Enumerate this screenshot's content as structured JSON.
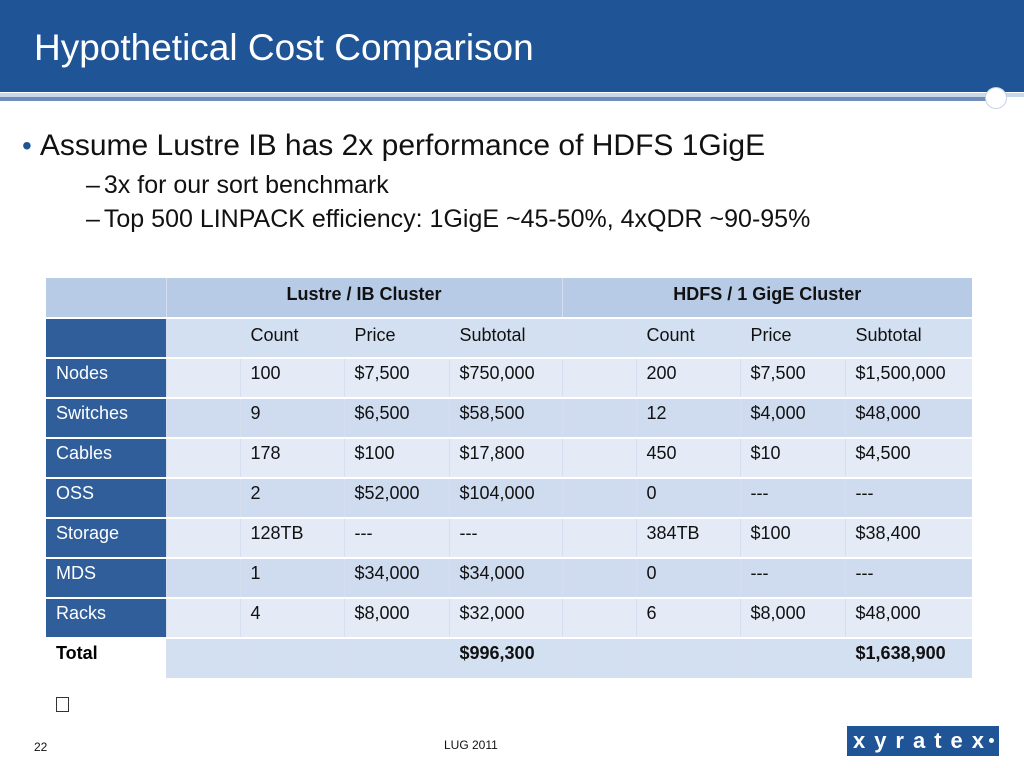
{
  "slide": {
    "title": "Hypothetical Cost Comparison",
    "bullet_main": "Assume Lustre IB has 2x performance of HDFS 1GigE",
    "sub_bullets": [
      "3x for our sort benchmark",
      "Top 500 LINPACK efficiency: 1GigE ~45-50%, 4xQDR ~90-95%"
    ],
    "bullet_marker": "•",
    "dash_marker": "–",
    "page_number": "22",
    "footer": "LUG 2011",
    "logo": "xyratex"
  },
  "table": {
    "groups": [
      "Lustre / IB Cluster",
      "HDFS / 1 GigE Cluster"
    ],
    "columns": [
      "Count",
      "Price",
      "Subtotal",
      "Count",
      "Price",
      "Subtotal"
    ],
    "rows": [
      {
        "label": "Nodes",
        "l_count": "100",
        "l_price": "$7,500",
        "l_sub": "$750,000",
        "h_count": "200",
        "h_price": "$7,500",
        "h_sub": "$1,500,000"
      },
      {
        "label": "Switches",
        "l_count": "9",
        "l_price": "$6,500",
        "l_sub": "$58,500",
        "h_count": "12",
        "h_price": "$4,000",
        "h_sub": "$48,000"
      },
      {
        "label": "Cables",
        "l_count": "178",
        "l_price": "$100",
        "l_sub": "$17,800",
        "h_count": "450",
        "h_price": "$10",
        "h_sub": "$4,500"
      },
      {
        "label": "OSS",
        "l_count": "2",
        "l_price": "$52,000",
        "l_sub": "$104,000",
        "h_count": "0",
        "h_price": "---",
        "h_sub": "---"
      },
      {
        "label": "Storage",
        "l_count": "128TB",
        "l_price": "---",
        "l_sub": "---",
        "h_count": "384TB",
        "h_price": "$100",
        "h_sub": "$38,400"
      },
      {
        "label": "MDS",
        "l_count": "1",
        "l_price": "$34,000",
        "l_sub": "$34,000",
        "h_count": "0",
        "h_price": "---",
        "h_sub": "---"
      },
      {
        "label": "Racks",
        "l_count": "4",
        "l_price": "$8,000",
        "l_sub": "$32,000",
        "h_count": "6",
        "h_price": "$8,000",
        "h_sub": "$48,000"
      }
    ],
    "total": {
      "label": "Total",
      "l_sub": "$996,300",
      "h_sub": "$1,638,900"
    }
  }
}
